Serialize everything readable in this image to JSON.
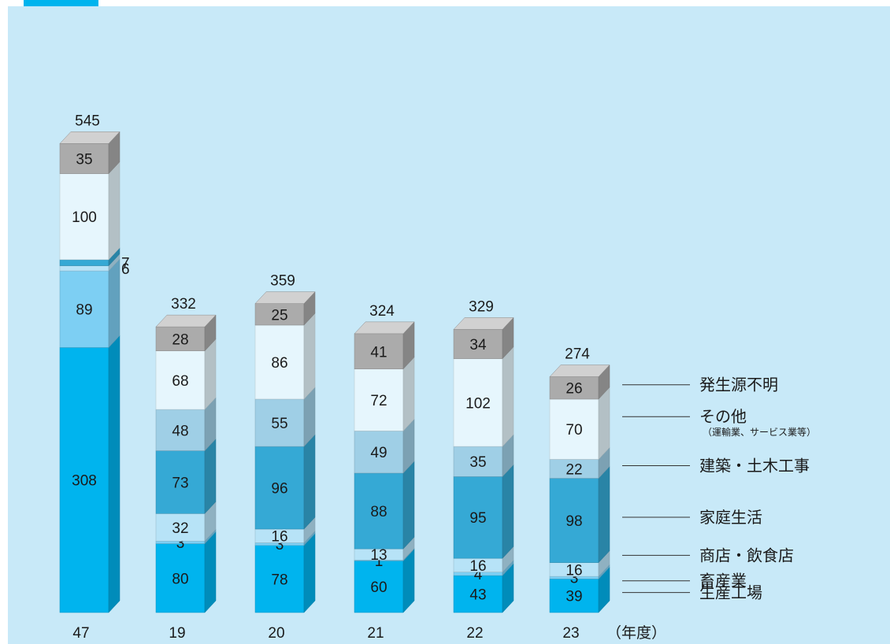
{
  "chart_data": {
    "type": "bar",
    "stacked": true,
    "style": "3d",
    "x_unit_label": "（年度）",
    "categories": [
      "47",
      "19",
      "20",
      "21",
      "22",
      "23"
    ],
    "totals": [
      545,
      332,
      359,
      324,
      329,
      274
    ],
    "series": [
      {
        "name": "生産工場",
        "color": "#00b4ee",
        "values": [
          308,
          80,
          78,
          60,
          43,
          39
        ]
      },
      {
        "name": "畜産業",
        "color": "#7dcff3",
        "values": [
          89,
          3,
          3,
          1,
          4,
          3
        ]
      },
      {
        "name": "商店・飲食店",
        "color": "#b7e3f7",
        "values": [
          6,
          32,
          16,
          13,
          16,
          16
        ]
      },
      {
        "name": "家庭生活",
        "color": "#35a9d5",
        "values": [
          7,
          73,
          96,
          88,
          95,
          98
        ]
      },
      {
        "name": "建築・土木工事",
        "color": "#9fcfe6",
        "values": [
          null,
          48,
          55,
          49,
          35,
          22
        ]
      },
      {
        "name": "その他",
        "sub_label": "（運輸業、サービス業等）",
        "color": "#e6f6fd",
        "values": [
          100,
          68,
          86,
          72,
          102,
          70
        ]
      },
      {
        "name": "発生源不明",
        "color": "#ababab",
        "values": [
          35,
          28,
          25,
          41,
          34,
          26
        ]
      }
    ],
    "legend_position": "right"
  }
}
